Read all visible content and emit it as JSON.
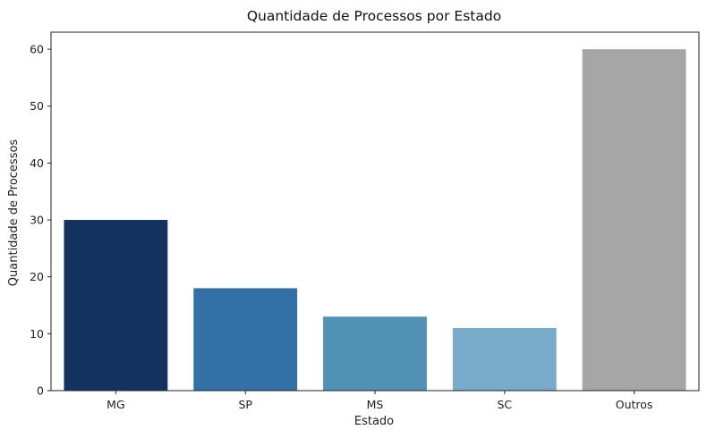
{
  "chart_data": {
    "type": "bar",
    "title": "Quantidade de Processos por Estado",
    "xlabel": "Estado",
    "ylabel": "Quantidade de Processos",
    "categories": [
      "MG",
      "SP",
      "MS",
      "SC",
      "Outros"
    ],
    "values": [
      30,
      18,
      13,
      11,
      60
    ],
    "colors": [
      "#14325f",
      "#3270a6",
      "#5291b6",
      "#78abcb",
      "#a6a6a6"
    ],
    "ylim": [
      0,
      63
    ],
    "yticks": [
      "0",
      "10",
      "20",
      "30",
      "40",
      "50",
      "60"
    ],
    "grid": false,
    "legend": "none"
  }
}
